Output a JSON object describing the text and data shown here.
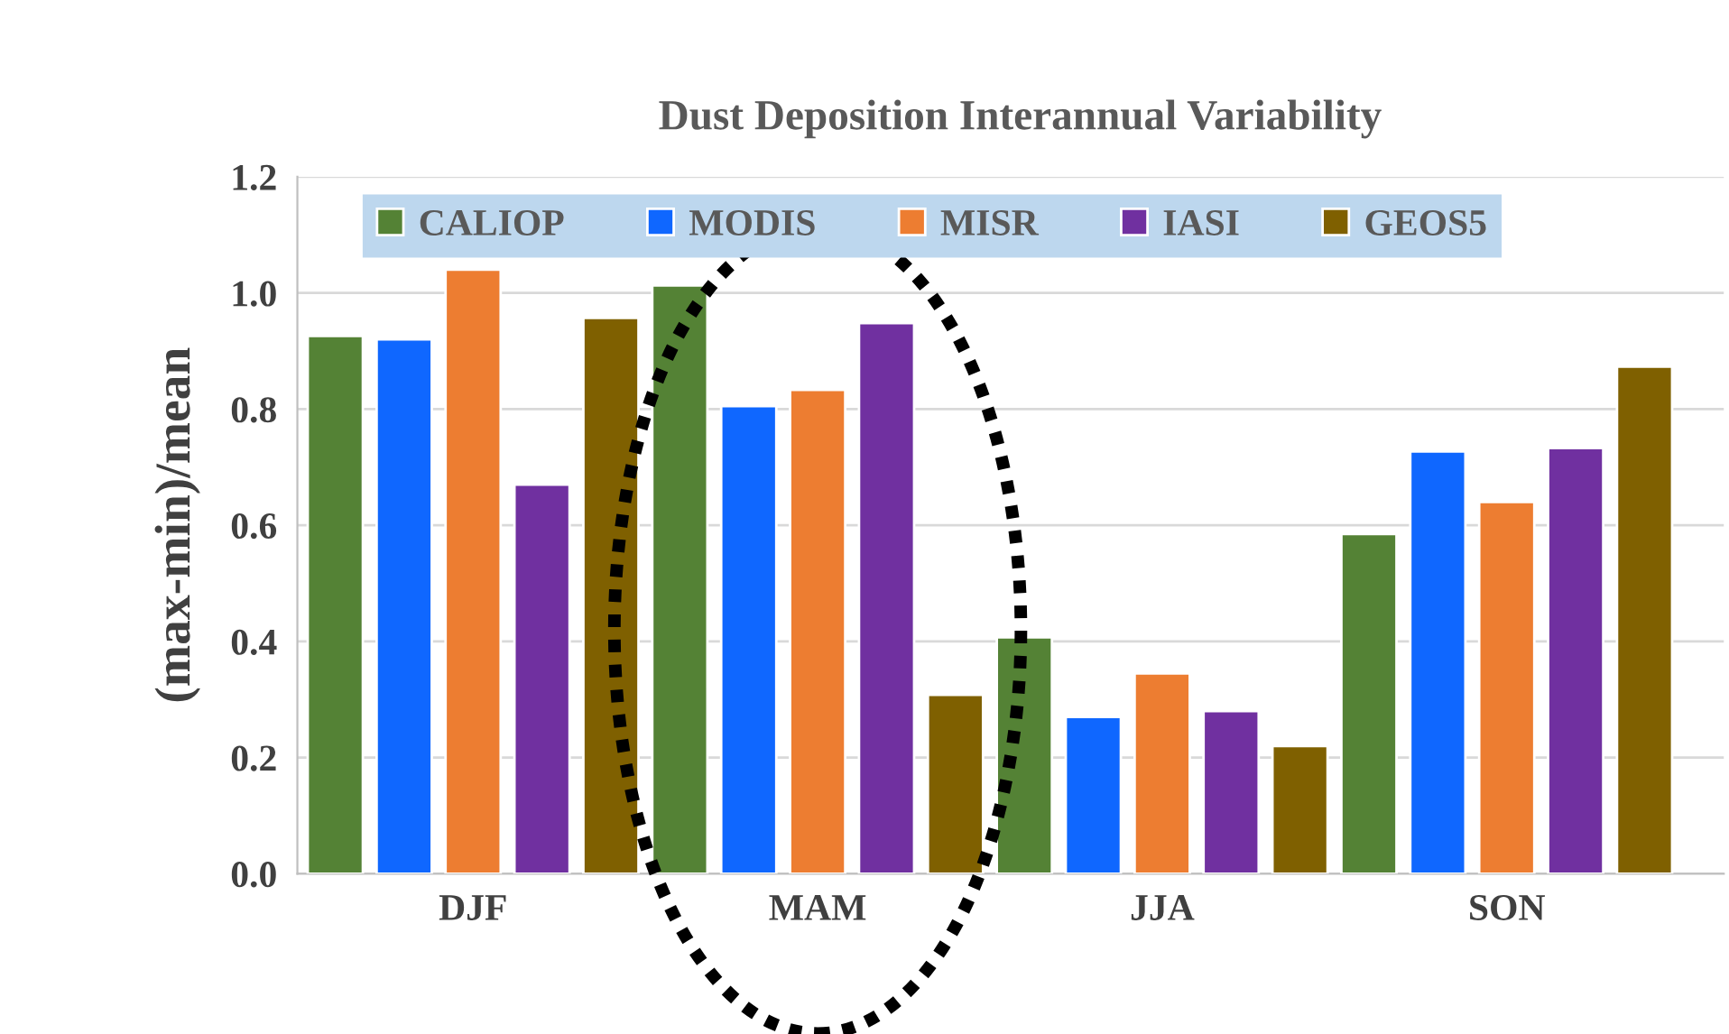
{
  "chart_data": {
    "type": "bar",
    "title": "Dust Deposition Interannual Variability",
    "ylabel": "(max-min)/mean",
    "categories": [
      "DJF",
      "MAM",
      "JJA",
      "SON"
    ],
    "series": [
      {
        "name": "CALIOP",
        "color": "#548235",
        "values": [
          0.926,
          1.013,
          0.407,
          0.585
        ]
      },
      {
        "name": "MODIS",
        "color": "#0f67ff",
        "values": [
          0.92,
          0.805,
          0.27,
          0.727
        ]
      },
      {
        "name": "MISR",
        "color": "#ed7d31",
        "values": [
          1.04,
          0.833,
          0.345,
          0.64
        ]
      },
      {
        "name": "IASI",
        "color": "#7030a0",
        "values": [
          0.67,
          0.948,
          0.28,
          0.733
        ]
      },
      {
        "name": "GEOS5",
        "color": "#7f6000",
        "values": [
          0.957,
          0.308,
          0.22,
          0.873
        ]
      }
    ],
    "ylim": [
      0,
      1.2
    ],
    "yticks": [
      {
        "value": 0,
        "label": "0.0"
      },
      {
        "value": 0.2,
        "label": "0.2"
      },
      {
        "value": 0.4,
        "label": "0.4"
      },
      {
        "value": 0.6,
        "label": "0.6"
      },
      {
        "value": 0.8,
        "label": "0.8"
      },
      {
        "value": 1.0,
        "label": "1.0"
      },
      {
        "value": 1.2,
        "label": "1.2"
      }
    ],
    "grid": "y",
    "legend": "top"
  }
}
